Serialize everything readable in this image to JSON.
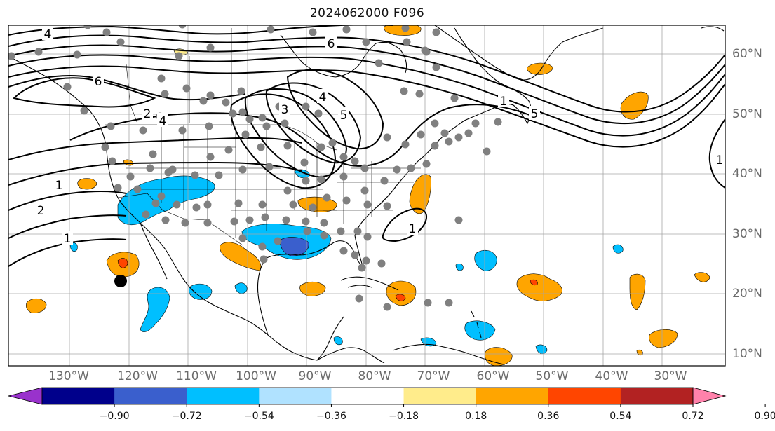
{
  "title": "2024062000 F096",
  "longitude_labels": [
    "130°W",
    "120°W",
    "110°W",
    "100°W",
    "90°W",
    "80°W",
    "70°W",
    "60°W",
    "50°W",
    "40°W",
    "30°W"
  ],
  "latitude_labels": [
    "60°N",
    "50°N",
    "40°N",
    "30°N",
    "20°N",
    "10°N"
  ],
  "contour_labels": [
    "4",
    "6",
    "6",
    "4",
    "3",
    "4",
    "5",
    "5",
    "2",
    "1",
    "2",
    "1",
    "1",
    "1",
    "1"
  ],
  "colorbar": {
    "tick_labels": [
      "−0.90",
      "−0.72",
      "−0.54",
      "−0.36",
      "−0.18",
      "0.18",
      "0.36",
      "0.54",
      "0.72",
      "0.90"
    ],
    "colors": [
      "#9932cc",
      "#00008b",
      "#3a5fcd",
      "#00bfff",
      "#b0e2ff",
      "#ffffff",
      "#ffec8b",
      "#ffa500",
      "#ff4500",
      "#b22222",
      "#ff82ab"
    ]
  },
  "colors": {
    "positive_fill": "#ffa500",
    "positive_core": "#ff4500",
    "negative_fill": "#00bfff",
    "negative_core": "#3a5fcd",
    "station_marker": "#808080",
    "highlight_marker": "#000000"
  }
}
